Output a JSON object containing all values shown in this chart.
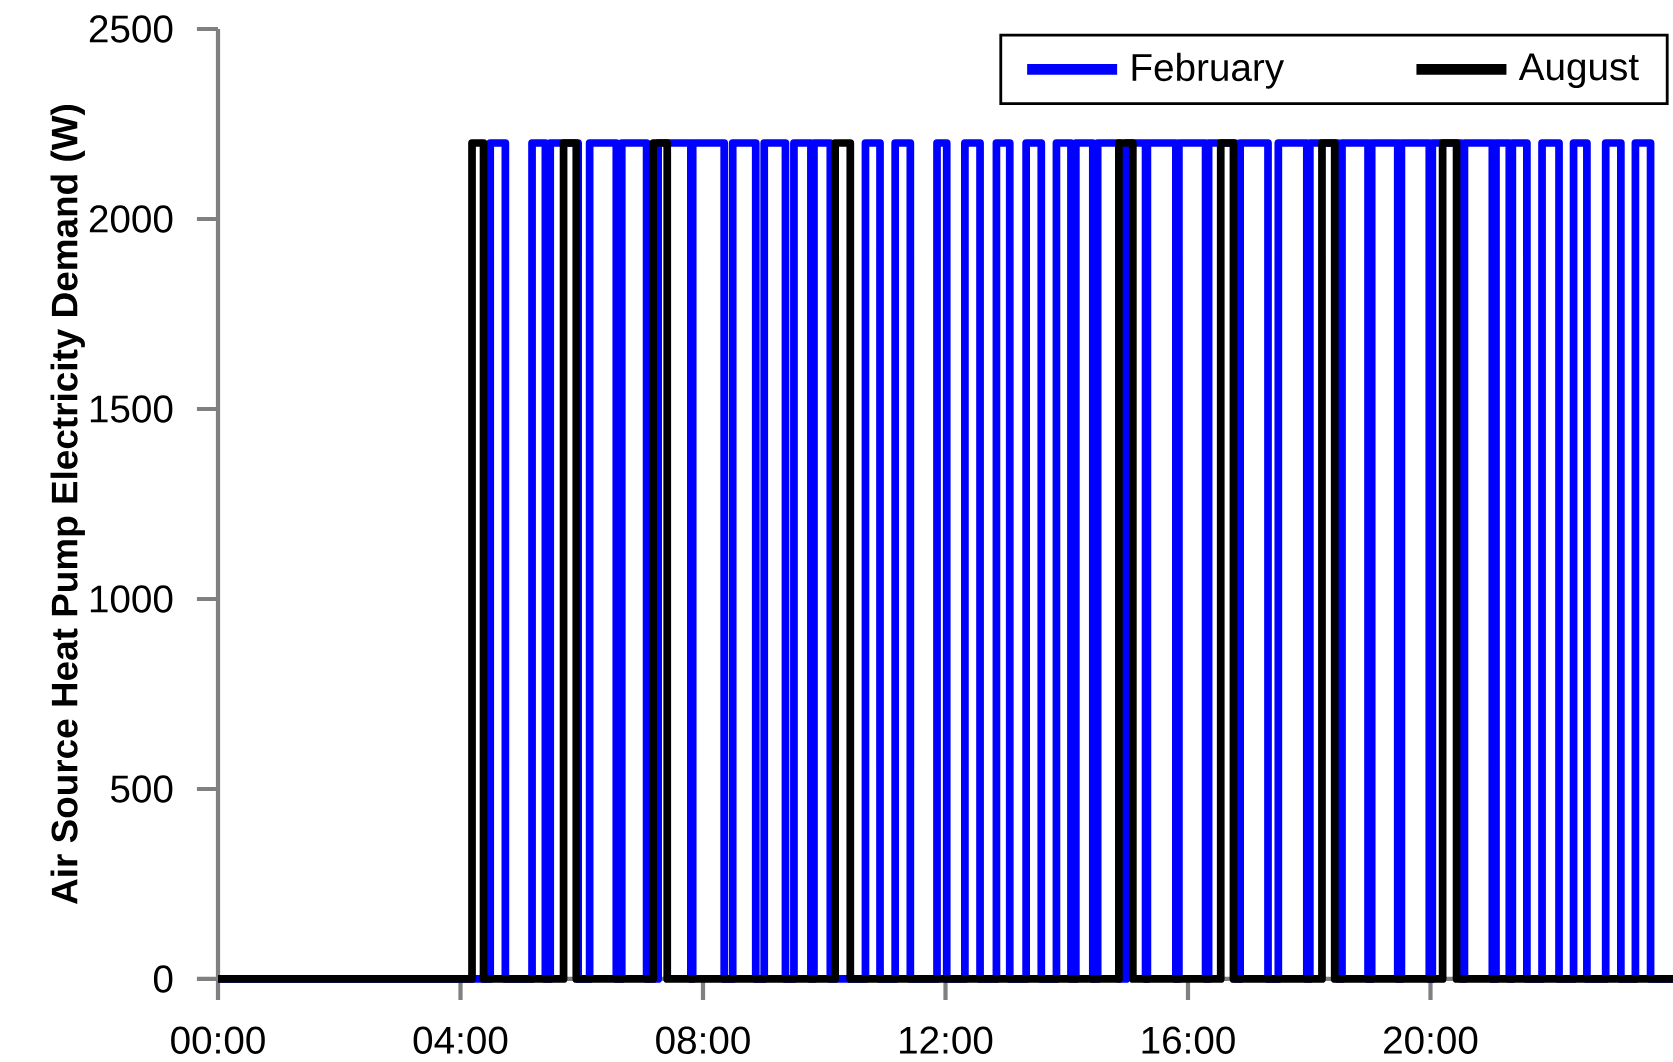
{
  "chart_data": {
    "type": "line",
    "ylabel": "Air Source Heat Pump Electricity Demand (W)",
    "xlim": [
      0,
      24
    ],
    "xticks": [
      {
        "value": 0,
        "label": "00:00"
      },
      {
        "value": 4,
        "label": "04:00"
      },
      {
        "value": 8,
        "label": "08:00"
      },
      {
        "value": 12,
        "label": "12:00"
      },
      {
        "value": 16,
        "label": "16:00"
      },
      {
        "value": 20,
        "label": "20:00"
      }
    ],
    "ylim": [
      0,
      2500
    ],
    "yticks": [
      0,
      500,
      1000,
      1500,
      2000,
      2500
    ],
    "legend": "top right",
    "series": [
      {
        "name": "February",
        "color": "#0000ff",
        "x": [
          0,
          4.49,
          4.49,
          4.74,
          4.74,
          5.18,
          5.18,
          5.4,
          5.4,
          5.48,
          5.48,
          5.94,
          5.94,
          6.13,
          6.13,
          6.57,
          6.57,
          6.66,
          6.66,
          7.07,
          7.07,
          7.26,
          7.26,
          7.8,
          7.8,
          7.83,
          7.83,
          8.35,
          8.35,
          8.49,
          8.49,
          8.87,
          8.87,
          9.01,
          9.01,
          9.36,
          9.36,
          9.5,
          9.5,
          9.78,
          9.78,
          9.83,
          9.83,
          10.1,
          10.1,
          10.68,
          10.68,
          10.92,
          10.92,
          11.17,
          11.17,
          11.42,
          11.42,
          11.86,
          11.86,
          12.02,
          12.02,
          12.32,
          12.32,
          12.57,
          12.57,
          12.84,
          12.84,
          13.06,
          13.06,
          13.33,
          13.33,
          13.58,
          13.58,
          13.83,
          13.83,
          14.07,
          14.07,
          14.15,
          14.15,
          14.43,
          14.43,
          14.51,
          14.51,
          14.87,
          14.87,
          14.98,
          14.98,
          15.3,
          15.3,
          15.33,
          15.33,
          15.8,
          15.8,
          15.85,
          15.85,
          16.29,
          16.29,
          16.34,
          16.34,
          16.78,
          16.78,
          16.86,
          16.86,
          17.32,
          17.32,
          17.49,
          17.49,
          17.96,
          17.96,
          18.01,
          18.01,
          18.47,
          18.47,
          18.54,
          18.54,
          18.97,
          18.97,
          19.03,
          19.03,
          19.46,
          19.46,
          19.52,
          19.52,
          19.98,
          19.98,
          20.03,
          20.03,
          20.51,
          20.51,
          20.56,
          20.56,
          21.02,
          21.02,
          21.08,
          21.08,
          21.3,
          21.3,
          21.35,
          21.35,
          21.59,
          21.59,
          21.84,
          21.84,
          22.12,
          22.12,
          22.36,
          22.36,
          22.58,
          22.58,
          22.89,
          22.89,
          23.14,
          23.14,
          23.38,
          23.38,
          23.63,
          23.63,
          24
        ],
        "values": [
          0,
          0,
          2200,
          2200,
          0,
          0,
          2200,
          2200,
          0,
          0,
          2200,
          2200,
          0,
          0,
          2200,
          2200,
          0,
          0,
          2200,
          2200,
          0,
          0,
          2200,
          2200,
          0,
          0,
          2200,
          2200,
          0,
          0,
          2200,
          2200,
          0,
          0,
          2200,
          2200,
          0,
          0,
          2200,
          2200,
          0,
          0,
          2200,
          2200,
          0,
          0,
          2200,
          2200,
          0,
          0,
          2200,
          2200,
          0,
          0,
          2200,
          2200,
          0,
          0,
          2200,
          2200,
          0,
          0,
          2200,
          2200,
          0,
          0,
          2200,
          2200,
          0,
          0,
          2200,
          2200,
          0,
          0,
          2200,
          2200,
          0,
          0,
          2200,
          2200,
          0,
          0,
          2200,
          2200,
          0,
          0,
          2200,
          2200,
          0,
          0,
          2200,
          2200,
          0,
          0,
          2200,
          2200,
          0,
          0,
          2200,
          2200,
          0,
          0,
          2200,
          2200,
          0,
          0,
          2200,
          2200,
          0,
          0,
          2200,
          2200,
          0,
          0,
          2200,
          2200,
          0,
          0,
          2200,
          2200,
          0,
          0,
          2200,
          2200,
          0,
          0,
          2200,
          2200,
          0,
          0,
          2200,
          2200,
          0,
          0,
          2200,
          2200,
          0,
          0,
          2200,
          2200,
          0,
          0,
          2200,
          2200,
          0,
          0,
          2200,
          2200,
          0,
          0,
          2200,
          2200,
          0,
          0
        ]
      },
      {
        "name": "August",
        "color": "#000000",
        "x": [
          0,
          4.19,
          4.19,
          4.38,
          4.38,
          5.7,
          5.7,
          5.91,
          5.91,
          7.18,
          7.18,
          7.41,
          7.41,
          10.18,
          10.18,
          10.43,
          10.43,
          14.86,
          14.86,
          15.09,
          15.09,
          16.54,
          16.54,
          16.75,
          16.75,
          18.21,
          18.21,
          18.42,
          18.42,
          20.2,
          20.2,
          20.43,
          20.43,
          24
        ],
        "values": [
          0,
          0,
          2200,
          2200,
          0,
          0,
          2200,
          2200,
          0,
          0,
          2200,
          2200,
          0,
          0,
          2200,
          2200,
          0,
          0,
          2200,
          2200,
          0,
          0,
          2200,
          2200,
          0,
          0,
          2200,
          2200,
          0,
          0,
          2200,
          2200,
          0,
          0
        ]
      }
    ]
  }
}
